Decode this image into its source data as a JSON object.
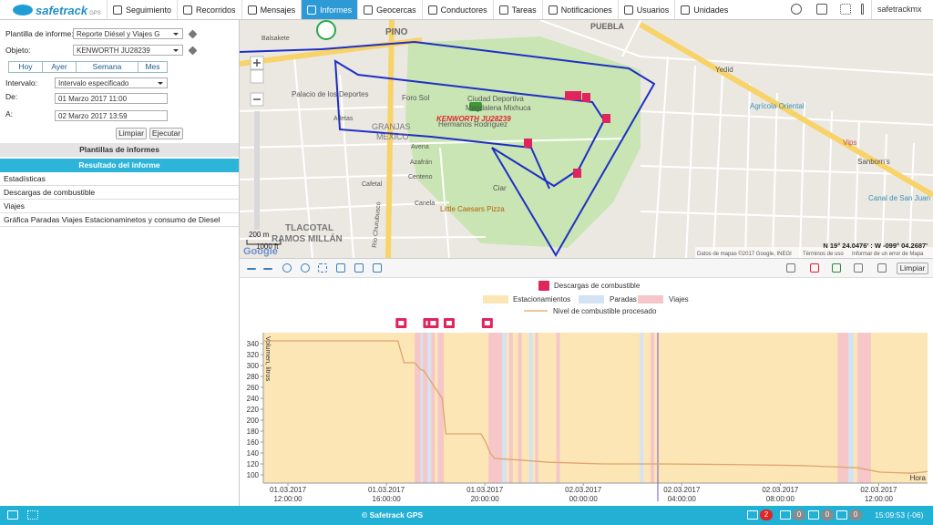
{
  "nav": {
    "logo": "safetrack",
    "logo_sub": "GPS",
    "items": [
      "Seguimiento",
      "Recorridos",
      "Mensajes",
      "Informes",
      "Geocercas",
      "Conductores",
      "Tareas",
      "Notificaciones",
      "Usuarios",
      "Unidades"
    ],
    "active": 3,
    "user": "safetrackmx"
  },
  "panel": {
    "template_label": "Plantilla de informe:",
    "template_value": "Reporte Diésel y Viajes G",
    "object_label": "Objeto:",
    "object_value": "KENWORTH JU28239",
    "periods": [
      "Hoy",
      "Ayer",
      "Semana",
      "Mes"
    ],
    "interval_label": "Intervalo:",
    "interval_value": "Intervalo especificado",
    "from_label": "De:",
    "from_value": "01 Marzo 2017 11:00",
    "to_label": "A:",
    "to_value": "02 Marzo 2017 13:59",
    "clear": "Limpiar",
    "run": "Ejecutar",
    "templates_header": "Plantillas de informes",
    "result_header": "Resultado del informe",
    "results": [
      "Estadísticas",
      "Descargas de combustible",
      "Viajes",
      "Gráfica Paradas Viajes Estacionaminetos y consumo de Diesel"
    ]
  },
  "map": {
    "labels": [
      "Balsakete",
      "PINO",
      "PUEBLA",
      "Palacio de los Deportes",
      "Foro Sol",
      "Ciudad Deportiva",
      "Magdalena Mixhuca",
      "Hermanos Rodríguez",
      "KENWORTH JU28239",
      "GRANJAS",
      "MÉXICO",
      "Atletas",
      "Avena",
      "Azafrán",
      "Centeno",
      "Cafetal",
      "Canela",
      "Little Caesars Pizza",
      "Ciar",
      "TLACOTAL",
      "RAMOS MILLÁN",
      "Yedid",
      "Agrícola Oriental",
      "Vips",
      "Sanborn's",
      "Canal de San Juan",
      "Río Churubusco"
    ],
    "attribution": "Datos de mapas ©2017 Google, INEGI",
    "terms": "Términos de uso",
    "report": "Informar de un error de Mapa",
    "coords": "N 19° 24.0476' : W -099° 04.2687'",
    "scale_m": "200 m",
    "scale_ft": "1000 ft",
    "google": "Google"
  },
  "chart_toolbar": {
    "clear": "Limpiar"
  },
  "chart_data": {
    "type": "line",
    "y_label": "Volumen, litros",
    "x_label": "Hora",
    "xlim": [
      "2017-03-01T11:00",
      "2017-03-02T13:59"
    ],
    "xticks": [
      {
        "value": "2017-03-01T12:00",
        "label": "01.03.2017\n12:00:00"
      },
      {
        "value": "2017-03-01T16:00",
        "label": "01.03.2017\n16:00:00"
      },
      {
        "value": "2017-03-01T20:00",
        "label": "01.03.2017\n20:00:00"
      },
      {
        "value": "2017-03-02T00:00",
        "label": "02.03.2017\n00:00:00"
      },
      {
        "value": "2017-03-02T04:00",
        "label": "02.03.2017\n04:00:00"
      },
      {
        "value": "2017-03-02T08:00",
        "label": "02.03.2017\n08:00:00"
      },
      {
        "value": "2017-03-02T12:00",
        "label": "02.03.2017\n12:00:00"
      }
    ],
    "ylim": [
      85,
      360
    ],
    "yticks": [
      100,
      120,
      140,
      160,
      180,
      200,
      220,
      240,
      260,
      280,
      300,
      320,
      340
    ],
    "grid": false,
    "events": {
      "name": "Descargas de combustible",
      "color": "#e0245e",
      "x": [
        "2017-03-01T16:36",
        "2017-03-01T17:43",
        "2017-03-01T17:54",
        "2017-03-01T18:33",
        "2017-03-01T20:06"
      ]
    },
    "intervals": [
      {
        "name": "Estacionamientos",
        "color": "#fce6b6",
        "ranges": [
          [
            "2017-03-01T11:00",
            "2017-03-02T13:59"
          ]
        ]
      },
      {
        "name": "Paradas",
        "color": "#d3e3f3",
        "ranges": [
          [
            "2017-03-01T17:23",
            "2017-03-01T17:29"
          ],
          [
            "2017-03-01T17:40",
            "2017-03-01T17:49"
          ],
          [
            "2017-03-01T20:42",
            "2017-03-01T20:53"
          ],
          [
            "2017-03-01T21:48",
            "2017-03-01T21:57"
          ],
          [
            "2017-03-02T02:18",
            "2017-03-02T02:27"
          ],
          [
            "2017-03-02T10:46",
            "2017-03-02T10:59"
          ]
        ]
      },
      {
        "name": "Viajes",
        "color": "#f5c7c9",
        "ranges": [
          [
            "2017-03-01T17:09",
            "2017-03-01T17:23"
          ],
          [
            "2017-03-01T17:29",
            "2017-03-01T17:40"
          ],
          [
            "2017-03-01T17:49",
            "2017-03-01T17:58"
          ],
          [
            "2017-03-01T18:05",
            "2017-03-01T18:20"
          ],
          [
            "2017-03-01T20:09",
            "2017-03-01T20:42"
          ],
          [
            "2017-03-01T20:59",
            "2017-03-01T21:08"
          ],
          [
            "2017-03-01T21:21",
            "2017-03-01T21:30"
          ],
          [
            "2017-03-01T22:03",
            "2017-03-01T22:10"
          ],
          [
            "2017-03-01T22:54",
            "2017-03-01T23:03"
          ],
          [
            "2017-03-02T02:44",
            "2017-03-02T02:53"
          ],
          [
            "2017-03-02T10:20",
            "2017-03-02T10:46"
          ],
          [
            "2017-03-02T11:08",
            "2017-03-02T11:41"
          ]
        ]
      }
    ],
    "series": [
      {
        "name": "Nivel de combustible procesado",
        "color": "#dea56c",
        "x": [
          "2017-03-01T11:00",
          "2017-03-01T16:28",
          "2017-03-01T16:43",
          "2017-03-01T17:09",
          "2017-03-01T17:23",
          "2017-03-01T17:32",
          "2017-03-01T17:49",
          "2017-03-01T18:07",
          "2017-03-01T18:16",
          "2017-03-01T18:25",
          "2017-03-01T19:51",
          "2017-03-01T20:02",
          "2017-03-01T20:13",
          "2017-03-01T20:24",
          "2017-03-01T21:08",
          "2017-03-01T22:37",
          "2017-03-02T00:49",
          "2017-03-02T03:02",
          "2017-03-02T05:58",
          "2017-03-02T08:55",
          "2017-03-02T11:08",
          "2017-03-02T12:03",
          "2017-03-02T13:20",
          "2017-03-02T13:59"
        ],
        "values": [
          345,
          345,
          305,
          305,
          293,
          290,
          270,
          250,
          240,
          175,
          175,
          160,
          140,
          130,
          128,
          123,
          120,
          120,
          119,
          117,
          113,
          105,
          103,
          106
        ]
      }
    ]
  },
  "footer": {
    "copyright": "© Safetrack GPS",
    "badges": [
      2,
      0,
      0,
      0
    ],
    "time": "15:09:53 (-06)"
  }
}
